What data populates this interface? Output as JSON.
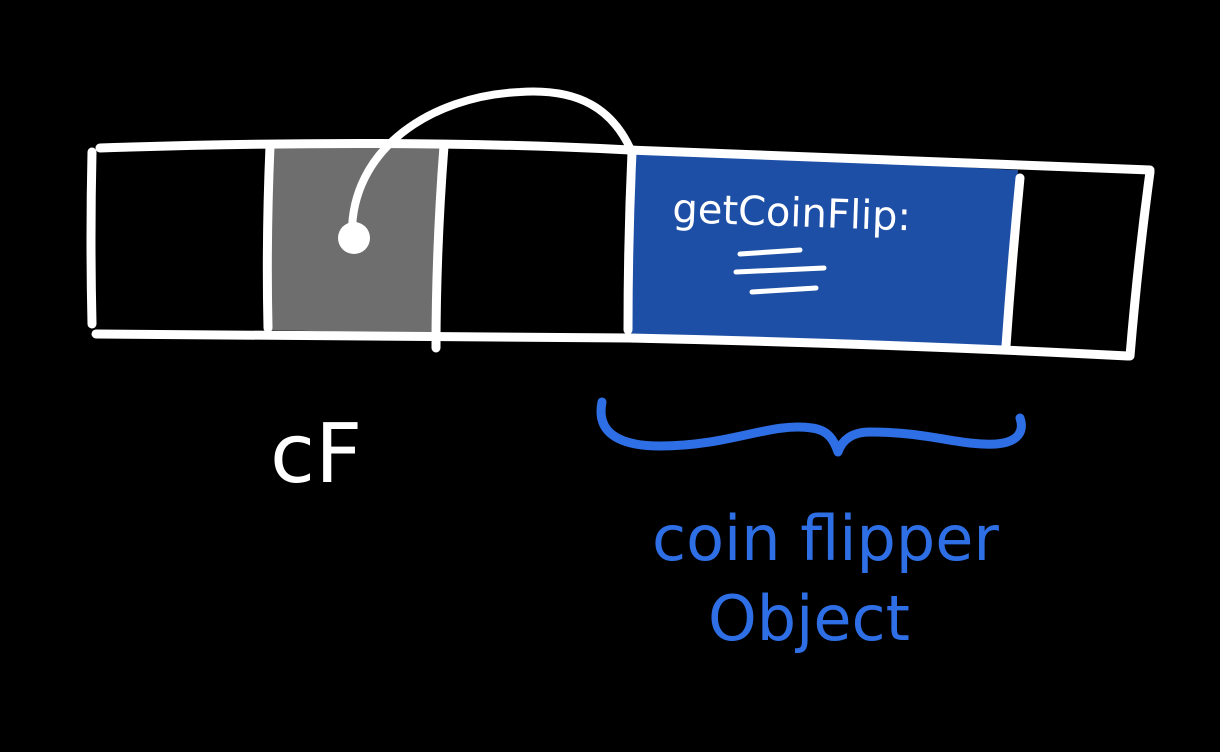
{
  "colors": {
    "background": "#000000",
    "stroke": "#ffffff",
    "pointer_cell_fill": "#6e6e6e",
    "object_fill": "#1e4fa6",
    "brace_and_object_label": "#2f6fe6"
  },
  "memory_cells": [
    {
      "role": "empty"
    },
    {
      "role": "pointer"
    },
    {
      "role": "empty"
    },
    {
      "role": "object"
    },
    {
      "role": "empty"
    }
  ],
  "variable_label": "cF",
  "object": {
    "method_text": "getCoinFlip:",
    "body_lines": 3,
    "label_line1": "coin flipper",
    "label_line2": "Object"
  }
}
